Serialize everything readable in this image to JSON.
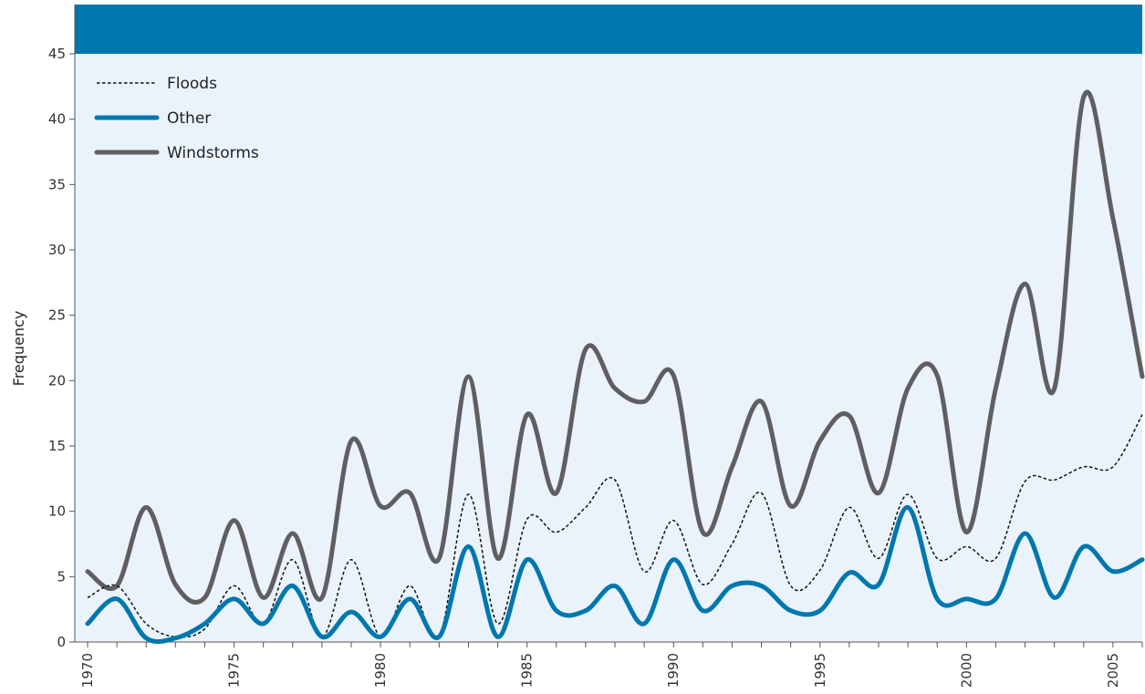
{
  "chart_data": {
    "type": "line",
    "title": "",
    "xlabel": "",
    "ylabel": "Frequency",
    "xlim": [
      1970,
      2006
    ],
    "ylim": [
      0,
      45
    ],
    "y_ticks": [
      0,
      5,
      10,
      15,
      20,
      25,
      30,
      35,
      40,
      45
    ],
    "x_tick_labels": [
      "1970",
      "1975",
      "1980",
      "1985",
      "1990",
      "1995",
      "2000",
      "2005"
    ],
    "grid": false,
    "legend_position": "top-left",
    "x": [
      1970,
      1971,
      1972,
      1973,
      1974,
      1975,
      1976,
      1977,
      1978,
      1979,
      1980,
      1981,
      1982,
      1983,
      1984,
      1985,
      1986,
      1987,
      1988,
      1989,
      1990,
      1991,
      1992,
      1993,
      1994,
      1995,
      1996,
      1997,
      1998,
      1999,
      2000,
      2001,
      2002,
      2003,
      2004,
      2005,
      2006
    ],
    "series": [
      {
        "name": "Floods",
        "color": "#111111",
        "style": "dashed",
        "values": [
          3.4,
          4.3,
          1.4,
          0.4,
          1.0,
          4.3,
          1.4,
          6.3,
          0.4,
          6.3,
          0.4,
          4.3,
          0.4,
          11.3,
          1.4,
          9.4,
          8.4,
          10.3,
          12.4,
          5.4,
          9.3,
          4.4,
          7.5,
          11.4,
          4.3,
          5.5,
          10.3,
          6.4,
          11.3,
          6.4,
          7.3,
          6.4,
          12.3,
          12.4,
          13.4,
          13.4,
          17.4
        ]
      },
      {
        "name": "Other",
        "color": "#0077ae",
        "style": "solid",
        "values": [
          1.4,
          3.3,
          0.3,
          0.3,
          1.4,
          3.3,
          1.4,
          4.3,
          0.4,
          2.3,
          0.4,
          3.3,
          0.4,
          7.3,
          0.4,
          6.3,
          2.4,
          2.4,
          4.3,
          1.4,
          6.3,
          2.4,
          4.3,
          4.3,
          2.4,
          2.4,
          5.3,
          4.4,
          10.3,
          3.3,
          3.3,
          3.3,
          8.3,
          3.4,
          7.3,
          5.4,
          6.3
        ]
      },
      {
        "name": "Windstorms",
        "color": "#5f5f61",
        "style": "solid",
        "values": [
          5.4,
          4.3,
          10.3,
          4.4,
          3.4,
          9.3,
          3.4,
          8.3,
          3.4,
          15.4,
          10.4,
          11.4,
          6.4,
          20.3,
          6.4,
          17.4,
          11.4,
          22.4,
          19.4,
          18.4,
          20.4,
          8.4,
          13.4,
          18.4,
          10.4,
          15.4,
          17.3,
          11.4,
          19.4,
          20.4,
          8.4,
          19.4,
          27.4,
          19.4,
          41.7,
          32.4,
          20.3
        ]
      }
    ]
  }
}
